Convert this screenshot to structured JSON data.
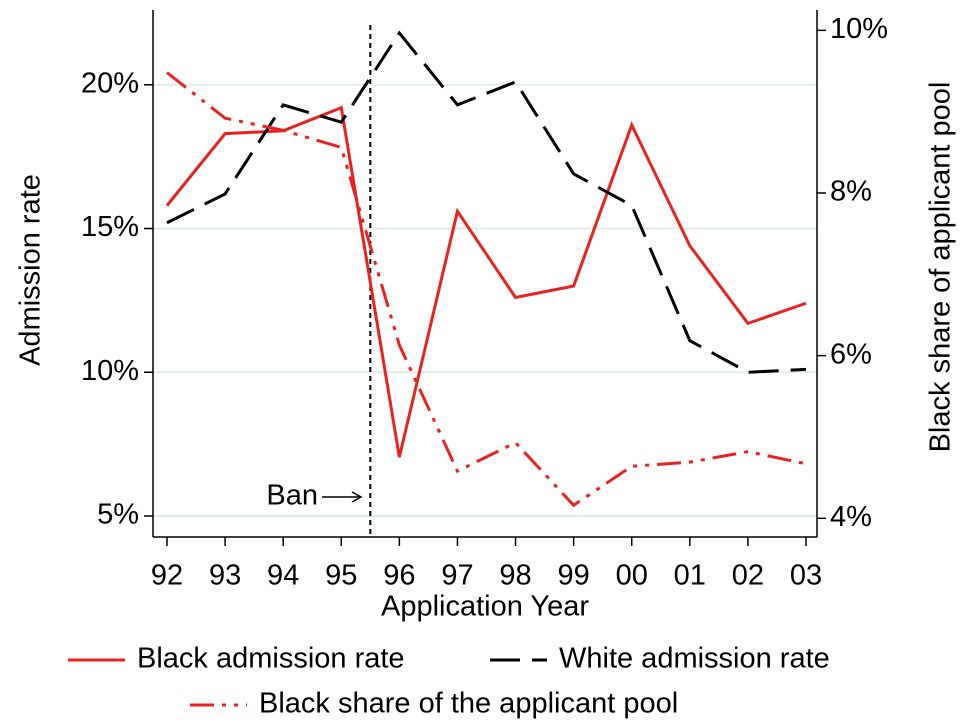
{
  "chart_data": {
    "type": "line",
    "x_label": "Application Year",
    "y_label": "Admission rate",
    "y2_label": "Black share of applicant pool",
    "categories": [
      "92",
      "93",
      "94",
      "95",
      "96",
      "97",
      "98",
      "99",
      "00",
      "01",
      "02",
      "03"
    ],
    "series": [
      {
        "name": "Black admission rate",
        "color": "#e8221e",
        "dash": "solid",
        "values": [
          15.8,
          18.3,
          18.4,
          19.2,
          7.05,
          15.6,
          12.6,
          13.0,
          18.6,
          14.4,
          11.7,
          12.4
        ]
      },
      {
        "name": "White admission rate",
        "color": "#000000",
        "dash": "dash",
        "values": [
          15.2,
          16.2,
          19.3,
          18.7,
          21.8,
          19.3,
          20.1,
          16.9,
          15.8,
          11.1,
          10.0,
          10.1
        ]
      },
      {
        "name": "Black share of the applicant pool",
        "color": "#e8221e",
        "dash": "dash-dot",
        "axis": "y2",
        "values": [
          9.48,
          8.92,
          8.77,
          8.56,
          6.13,
          4.58,
          4.93,
          4.16,
          4.64,
          4.69,
          4.82,
          4.67
        ]
      }
    ],
    "ylim": [
      4.27,
      22.6
    ],
    "yticks": [
      {
        "value": 5,
        "label": "5%"
      },
      {
        "value": 10,
        "label": "10%"
      },
      {
        "value": 15,
        "label": "15%"
      },
      {
        "value": 20,
        "label": "20%"
      }
    ],
    "y2lim": [
      3.77,
      10.25
    ],
    "y2ticks": [
      {
        "value": 4,
        "label": "4%"
      },
      {
        "value": 6,
        "label": "6%"
      },
      {
        "value": 8,
        "label": "8%"
      },
      {
        "value": 10,
        "label": "10%"
      }
    ],
    "grid": true,
    "annotations": [
      {
        "text": "Ban"
      }
    ]
  }
}
